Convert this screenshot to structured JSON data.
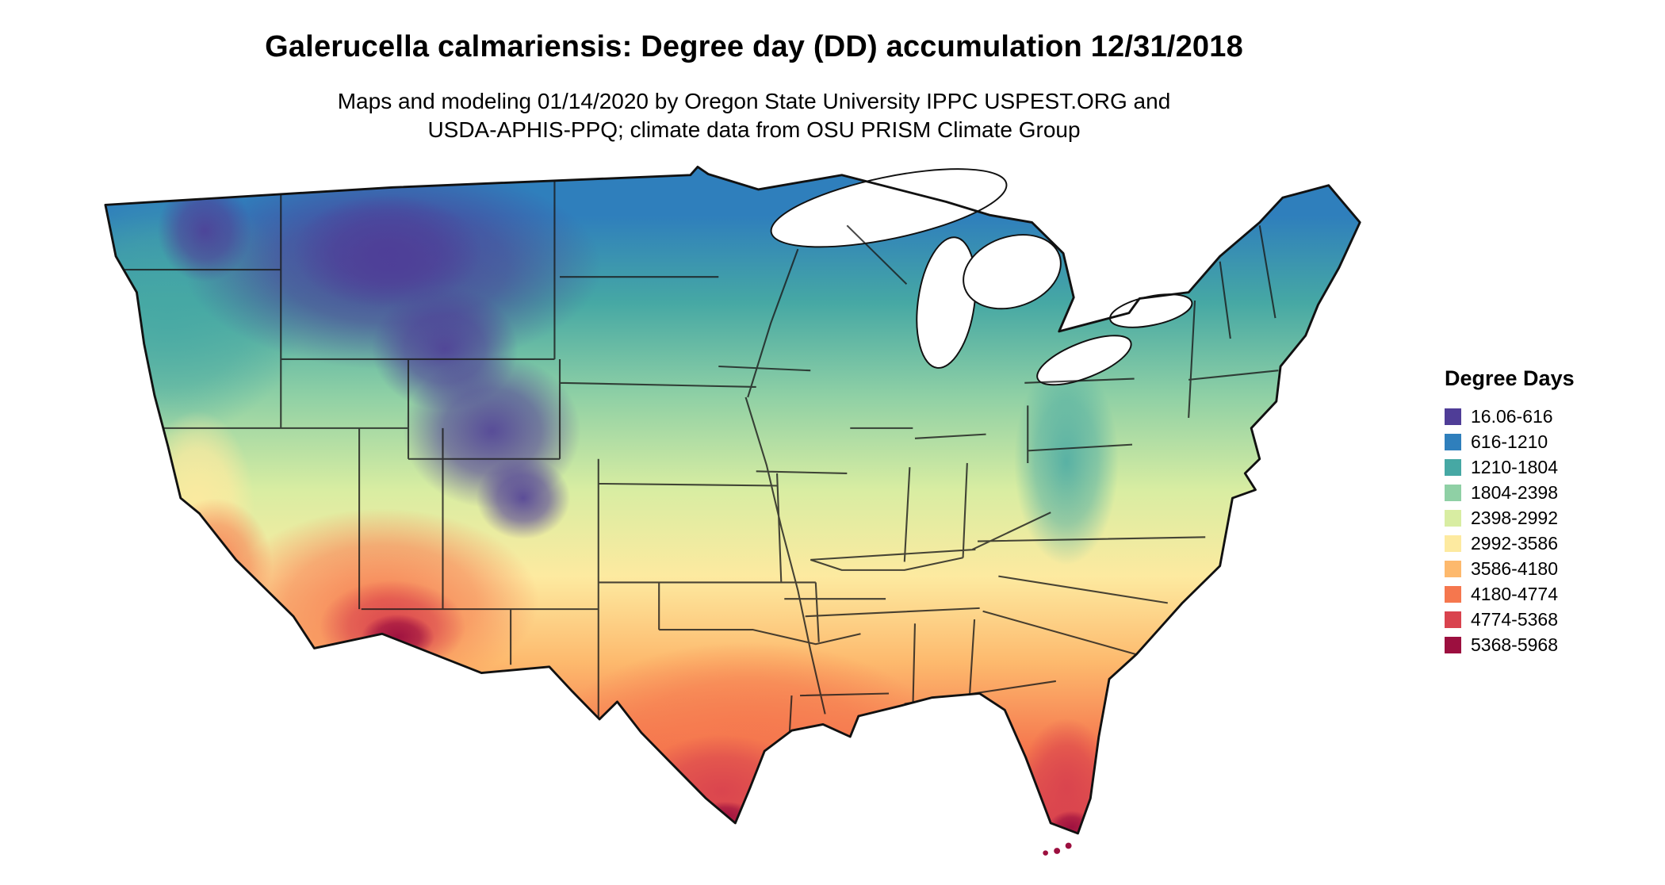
{
  "title": "Galerucella calmariensis: Degree day (DD) accumulation 12/31/2018",
  "subtitle_line1": "Maps and modeling 01/14/2020 by Oregon State University IPPC USPEST.ORG and",
  "subtitle_line2": "USDA-APHIS-PPQ; climate data from OSU PRISM Climate Group",
  "legend": {
    "title": "Degree Days",
    "entries": [
      {
        "label": "16.06-616",
        "color": "#4f3d97"
      },
      {
        "label": "616-1210",
        "color": "#2f7fbc"
      },
      {
        "label": "1210-1804",
        "color": "#46a8a4"
      },
      {
        "label": "1804-2398",
        "color": "#8fd0a5"
      },
      {
        "label": "2398-2992",
        "color": "#d8eda2"
      },
      {
        "label": "2992-3586",
        "color": "#fdeaa0"
      },
      {
        "label": "3586-4180",
        "color": "#fdb96d"
      },
      {
        "label": "4180-4774",
        "color": "#f5774e"
      },
      {
        "label": "4774-5368",
        "color": "#d9434e"
      },
      {
        "label": "5368-5968",
        "color": "#9c0f3f"
      }
    ]
  }
}
